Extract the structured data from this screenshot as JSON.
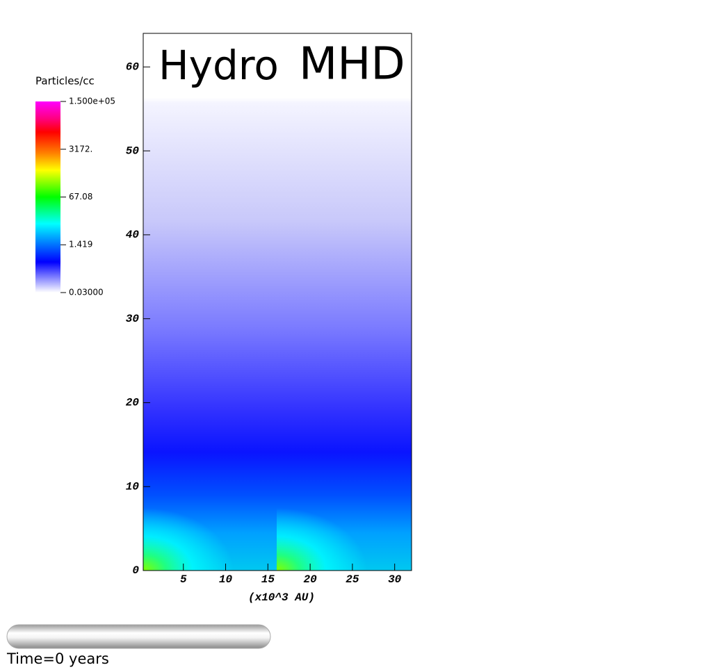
{
  "chart_data": {
    "type": "pseudocolor",
    "annotations": [
      "Hydro",
      "MHD"
    ],
    "xlabel": "(x10^3 AU)",
    "xlim": [
      0.25,
      32
    ],
    "xticks": [
      5,
      10,
      15,
      20,
      25,
      30
    ],
    "ylim": [
      0,
      64
    ],
    "yticks": [
      0,
      10,
      20,
      30,
      40,
      50,
      60
    ],
    "colorbar": {
      "title": "Particles/cc",
      "log_scale": true,
      "lim": [
        0.03,
        150000
      ],
      "ticks": [
        {
          "value": 150000,
          "label": "1.500e+05"
        },
        {
          "value": 3172,
          "label": "3172."
        },
        67.08,
        1.419,
        {
          "value": 0.03,
          "label": "0.03000"
        }
      ]
    },
    "time_label": "Time=0 years"
  }
}
